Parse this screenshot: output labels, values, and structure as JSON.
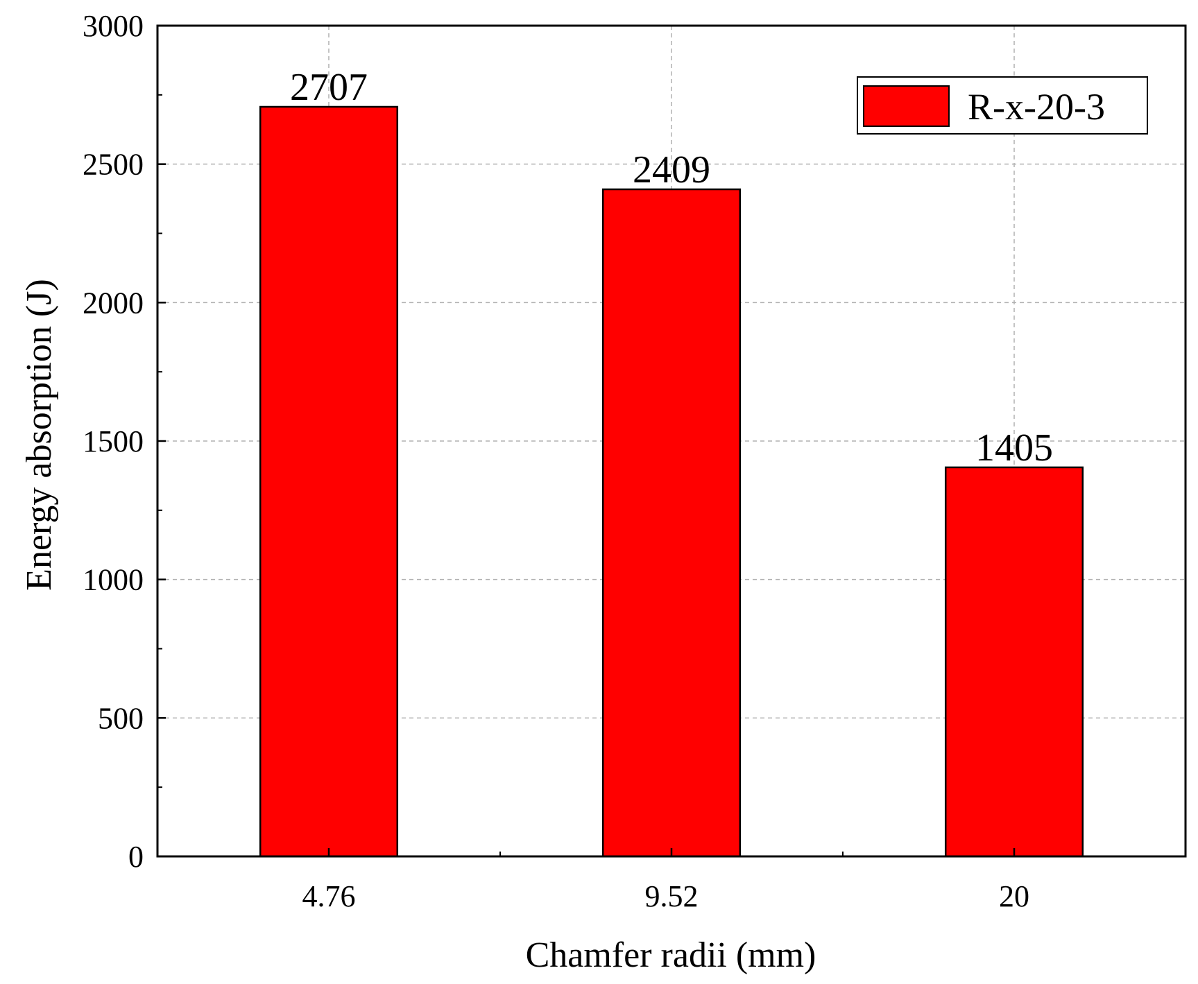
{
  "chart_data": {
    "type": "bar",
    "categories": [
      "4.76",
      "9.52",
      "20"
    ],
    "series": [
      {
        "name": "R-x-20-3",
        "values": [
          2707,
          2409,
          1405
        ],
        "color": "#ff0000"
      }
    ],
    "data_labels": [
      "2707",
      "2409",
      "1405"
    ],
    "title": "",
    "xlabel": "Chamfer radii (mm)",
    "ylabel": "Energy absorption (J)",
    "ylim": [
      0,
      3000
    ],
    "yticks": [
      0,
      500,
      1000,
      1500,
      2000,
      2500,
      3000
    ],
    "ytick_labels": [
      "0",
      "500",
      "1000",
      "1500",
      "2000",
      "2500",
      "3000"
    ],
    "y_minor_step": 250,
    "grid": true,
    "grid_style": "dashed",
    "legend": {
      "position": "top-right",
      "label": "R-x-20-3"
    },
    "colors": {
      "bar_fill": "#ff0000",
      "bar_stroke": "#000000",
      "grid": "#b0b0b0",
      "axis": "#000000"
    }
  }
}
